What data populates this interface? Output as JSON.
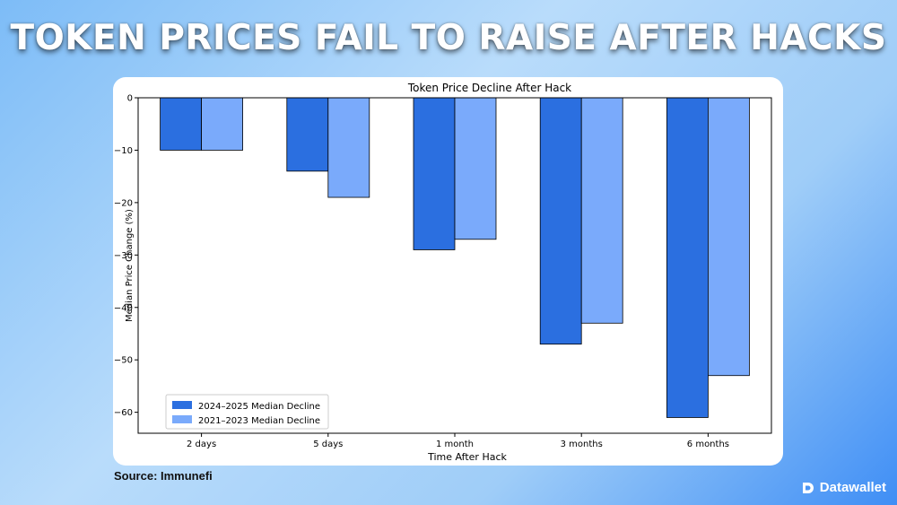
{
  "headline": "TOKEN PRICES FAIL TO RAISE AFTER HACKS",
  "source": "Source: Immunefi",
  "brand": "Datawallet",
  "colors": {
    "series1": "#2b6fe0",
    "series2": "#7aaafb"
  },
  "chart_data": {
    "type": "bar",
    "title": "Token Price Decline After Hack",
    "xlabel": "Time After Hack",
    "ylabel": "Median Price Change (%)",
    "categories": [
      "2 days",
      "5 days",
      "1 month",
      "3 months",
      "6 months"
    ],
    "series": [
      {
        "name": "2024–2025 Median Decline",
        "values": [
          -10,
          -14,
          -29,
          -47,
          -61
        ]
      },
      {
        "name": "2021–2023 Median Decline",
        "values": [
          -10,
          -19,
          -27,
          -43,
          -53
        ]
      }
    ],
    "ylim": [
      -64,
      0
    ],
    "yticks": [
      0,
      -10,
      -20,
      -30,
      -40,
      -50,
      -60
    ],
    "ytick_labels": [
      "0",
      "−10",
      "−20",
      "−30",
      "−40",
      "−50",
      "−60"
    ],
    "legend_position": "lower-left",
    "grid": false
  }
}
